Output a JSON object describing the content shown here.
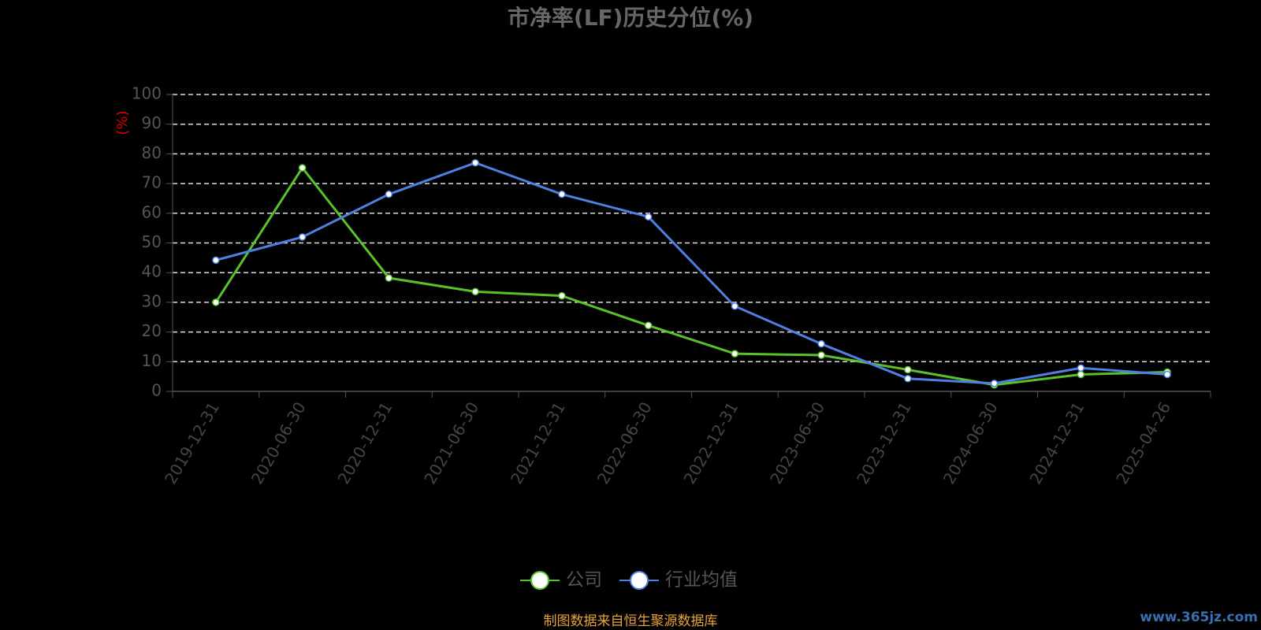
{
  "chart_data": {
    "type": "line",
    "title": "市净率(LF)历史分位(%)",
    "y_label": "(%)",
    "categories": [
      "2019-12-31",
      "2020-06-30",
      "2020-12-31",
      "2021-06-30",
      "2021-12-31",
      "2022-06-30",
      "2022-12-31",
      "2023-06-30",
      "2023-12-31",
      "2024-06-30",
      "2024-12-31",
      "2025-04-26"
    ],
    "series": [
      {
        "name": "公司",
        "color": "#58c22a",
        "values": [
          30,
          75.3,
          38.2,
          33.6,
          32.2,
          22.2,
          12.7,
          12.2,
          7.3,
          2.2,
          5.7,
          6.5
        ]
      },
      {
        "name": "行业均值",
        "color": "#4f80e1",
        "values": [
          44.2,
          52,
          66.4,
          77,
          66.4,
          58.8,
          28.7,
          16,
          4.3,
          2.7,
          7.9,
          5.7
        ]
      }
    ],
    "ylim": [
      0,
      100
    ],
    "yticks": [
      0,
      10,
      20,
      30,
      40,
      50,
      60,
      70,
      80,
      90,
      100
    ],
    "grid": true,
    "legend": "bottom",
    "source": "制图数据来自恒生聚源数据库",
    "watermark": "www.365jz.com"
  }
}
